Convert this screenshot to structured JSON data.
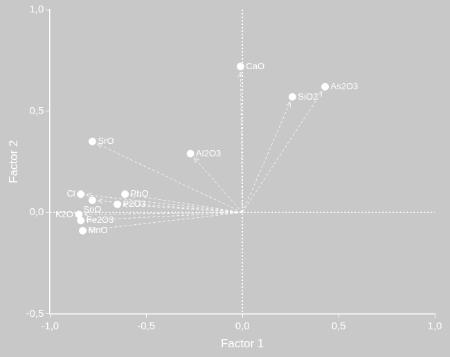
{
  "chart_data": {
    "type": "scatter",
    "xlabel": "Factor 1",
    "ylabel": "Factor 2",
    "labels": [
      "CaO",
      "As2O3",
      "SiO2",
      "SrO",
      "Al2O3",
      "Cl",
      "PbO",
      "SnO",
      "P2O3",
      "K2O",
      "Fe2O3",
      "MnO"
    ],
    "x": [
      -0.01,
      0.43,
      0.26,
      -0.78,
      -0.27,
      -0.84,
      -0.61,
      -0.78,
      -0.65,
      -0.85,
      -0.84,
      -0.83
    ],
    "values": [
      0.72,
      0.62,
      0.57,
      0.35,
      0.29,
      0.09,
      0.09,
      0.06,
      0.04,
      -0.01,
      -0.04,
      -0.09
    ],
    "color": "#ffffff",
    "marker": "circle",
    "xlim": [
      -1,
      1
    ],
    "xticks": [
      {
        "value": -1,
        "label": "-1,0"
      },
      {
        "value": -0.5,
        "label": "-0,5"
      },
      {
        "value": 0,
        "label": "0,0"
      },
      {
        "value": 0.5,
        "label": "0,5"
      },
      {
        "value": 1,
        "label": "1,0"
      }
    ],
    "ylim": [
      -0.5,
      1
    ],
    "yticks": [
      {
        "value": -0.5,
        "label": "-0,5"
      },
      {
        "value": 0,
        "label": "0,0"
      },
      {
        "value": 0.5,
        "label": "0,5"
      },
      {
        "value": 1,
        "label": "1,0"
      }
    ],
    "grid": false
  }
}
